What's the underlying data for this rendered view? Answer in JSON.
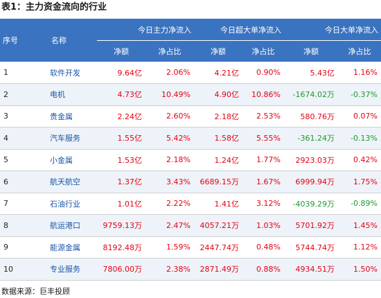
{
  "title": "表1：主力资金流向的行业",
  "header": {
    "col_no": "序号",
    "col_name": "名称",
    "group_main": "今日主力净流入",
    "group_super": "今日超大单净流入",
    "group_large": "今日大单净流入",
    "sub_amount": "净额",
    "sub_ratio": "净占比"
  },
  "rows": [
    {
      "no": "1",
      "name": "软件开发",
      "main_amt": "9.64亿",
      "main_ratio": "2.06%",
      "super_amt": "4.21亿",
      "super_ratio": "0.90%",
      "large_amt": "5.43亿",
      "large_ratio": "1.16%"
    },
    {
      "no": "2",
      "name": "电机",
      "main_amt": "4.73亿",
      "main_ratio": "10.49%",
      "super_amt": "4.90亿",
      "super_ratio": "10.86%",
      "large_amt": "-1674.02万",
      "large_ratio": "-0.37%"
    },
    {
      "no": "3",
      "name": "贵金属",
      "main_amt": "2.24亿",
      "main_ratio": "2.60%",
      "super_amt": "2.18亿",
      "super_ratio": "2.53%",
      "large_amt": "580.76万",
      "large_ratio": "0.07%"
    },
    {
      "no": "4",
      "name": "汽车服务",
      "main_amt": "1.55亿",
      "main_ratio": "5.42%",
      "super_amt": "1.58亿",
      "super_ratio": "5.55%",
      "large_amt": "-361.24万",
      "large_ratio": "-0.13%"
    },
    {
      "no": "5",
      "name": "小金属",
      "main_amt": "1.53亿",
      "main_ratio": "2.18%",
      "super_amt": "1.24亿",
      "super_ratio": "1.77%",
      "large_amt": "2923.03万",
      "large_ratio": "0.42%"
    },
    {
      "no": "6",
      "name": "航天航空",
      "main_amt": "1.37亿",
      "main_ratio": "3.43%",
      "super_amt": "6689.15万",
      "super_ratio": "1.67%",
      "large_amt": "6999.94万",
      "large_ratio": "1.75%"
    },
    {
      "no": "7",
      "name": "石油行业",
      "main_amt": "1.01亿",
      "main_ratio": "2.22%",
      "super_amt": "1.41亿",
      "super_ratio": "3.12%",
      "large_amt": "-4039.29万",
      "large_ratio": "-0.89%"
    },
    {
      "no": "8",
      "name": "航运港口",
      "main_amt": "9759.13万",
      "main_ratio": "2.47%",
      "super_amt": "4057.21万",
      "super_ratio": "1.03%",
      "large_amt": "5701.92万",
      "large_ratio": "1.45%"
    },
    {
      "no": "9",
      "name": "能源金属",
      "main_amt": "8192.48万",
      "main_ratio": "1.59%",
      "super_amt": "2447.74万",
      "super_ratio": "0.48%",
      "large_amt": "5744.74万",
      "large_ratio": "1.12%"
    },
    {
      "no": "10",
      "name": "专业服务",
      "main_amt": "7806.00万",
      "main_ratio": "2.38%",
      "super_amt": "2871.49万",
      "super_ratio": "0.88%",
      "large_amt": "4934.51万",
      "large_ratio": "1.50%"
    }
  ],
  "colors": {
    "header_bg": "#3a73c0",
    "positive": "#e60012",
    "negative": "#1c9a2a",
    "name_link": "#1a55a6",
    "row_alt": "#eef3f9"
  },
  "source": "数据来源：巨丰投顾"
}
